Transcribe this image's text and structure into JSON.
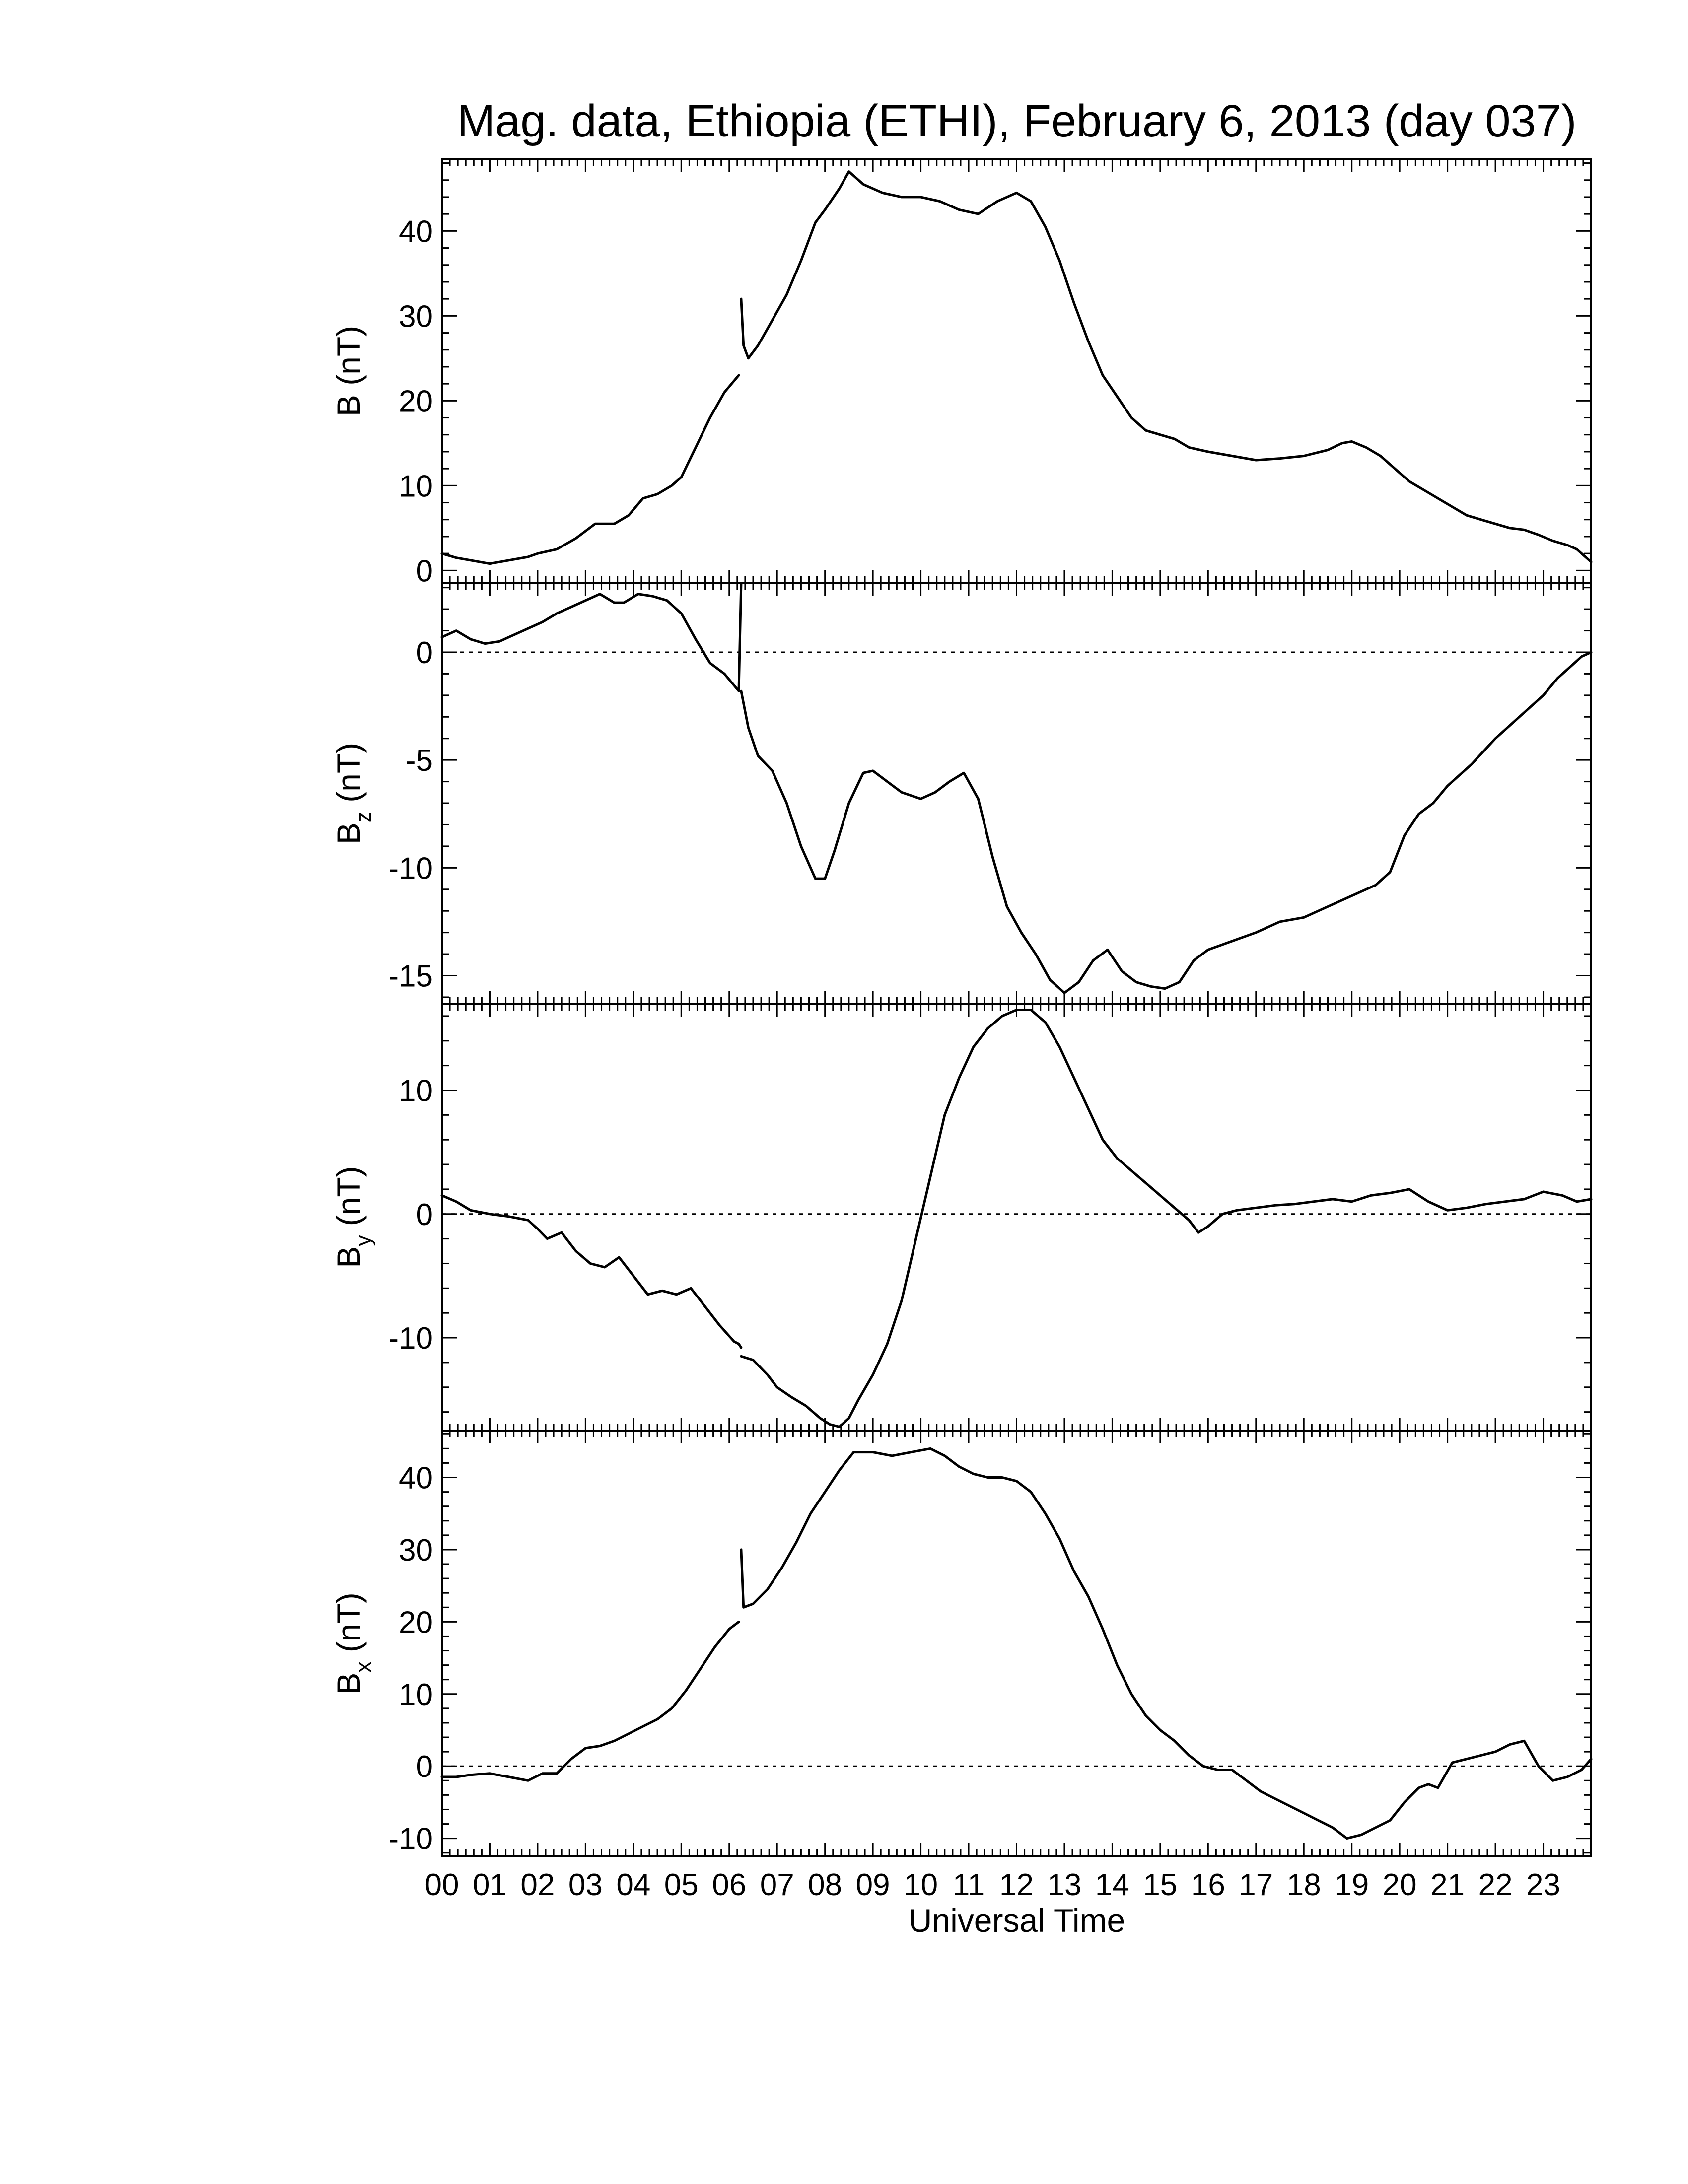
{
  "chart_data": {
    "type": "line",
    "title": "Mag. data, Ethiopia (ETHI), February 6, 2013 (day 037)",
    "xlabel": "Universal Time",
    "xlim": [
      0,
      24
    ],
    "x_tick_labels": [
      "00",
      "01",
      "02",
      "03",
      "04",
      "05",
      "06",
      "07",
      "08",
      "09",
      "10",
      "11",
      "12",
      "13",
      "14",
      "15",
      "16",
      "17",
      "18",
      "19",
      "20",
      "21",
      "22",
      "23"
    ],
    "panels": [
      {
        "id": "B",
        "ylabel_main": "B",
        "ylabel_sub": "",
        "ylabel_unit": "(nT)",
        "ylim": [
          -1.5,
          48.5
        ],
        "yticks": [
          0,
          10,
          20,
          30,
          40
        ],
        "ytick_labels": [
          "0",
          "10",
          "20",
          "30",
          "40"
        ],
        "zero_line": false,
        "series": [
          {
            "x": [
              0,
              0.3,
              0.6,
              1.0,
              1.4,
              1.8,
              2.0,
              2.4,
              2.8,
              3.2,
              3.6,
              3.9,
              4.2,
              4.5,
              4.8,
              5.0,
              5.3,
              5.6,
              5.9,
              6.2
            ],
            "y": [
              2.0,
              1.5,
              1.2,
              0.8,
              1.2,
              1.6,
              2.0,
              2.5,
              3.8,
              5.5,
              5.5,
              6.5,
              8.5,
              9.0,
              10.0,
              11.0,
              14.5,
              18.0,
              21.0,
              23.0
            ]
          },
          {
            "x": [
              6.25,
              6.3,
              6.4,
              6.6,
              6.9,
              7.2,
              7.5,
              7.8,
              8.0,
              8.3,
              8.5,
              8.8,
              9.2,
              9.6,
              10.0,
              10.4,
              10.8,
              11.2,
              11.6,
              12.0,
              12.3,
              12.6,
              12.9,
              13.2,
              13.5,
              13.8,
              14.1,
              14.4,
              14.7,
              15.0,
              15.3,
              15.6,
              16.0,
              16.5,
              17.0,
              17.5,
              18.0,
              18.5,
              18.8,
              19.0,
              19.3,
              19.6,
              19.9,
              20.2,
              20.5,
              20.8,
              21.1,
              21.4,
              21.7,
              22.0,
              22.3,
              22.6,
              22.9,
              23.2,
              23.5,
              23.7,
              23.9,
              24.0
            ],
            "y": [
              32.0,
              26.5,
              25.0,
              26.5,
              29.5,
              32.5,
              36.5,
              41.0,
              42.5,
              45.0,
              47.0,
              45.5,
              44.5,
              44.0,
              44.0,
              43.5,
              42.5,
              42.0,
              43.5,
              44.5,
              43.5,
              40.5,
              36.5,
              31.5,
              27.0,
              23.0,
              20.5,
              18.0,
              16.5,
              16.0,
              15.5,
              14.5,
              14.0,
              13.5,
              13.0,
              13.2,
              13.5,
              14.2,
              15.0,
              15.2,
              14.5,
              13.5,
              12.0,
              10.5,
              9.5,
              8.5,
              7.5,
              6.5,
              6.0,
              5.5,
              5.0,
              4.8,
              4.2,
              3.5,
              3.0,
              2.5,
              1.5,
              1.0
            ]
          }
        ]
      },
      {
        "id": "Bz",
        "ylabel_main": "B",
        "ylabel_sub": "z",
        "ylabel_unit": "(nT)",
        "ylim": [
          -16.3,
          3.2
        ],
        "yticks": [
          0,
          -5,
          -10,
          -15
        ],
        "ytick_labels": [
          "0",
          "-5",
          "-10",
          "-15"
        ],
        "zero_line": true,
        "series": [
          {
            "x": [
              0,
              0.3,
              0.6,
              0.9,
              1.2,
              1.5,
              1.8,
              2.1,
              2.4,
              2.7,
              3.0,
              3.3,
              3.6,
              3.8,
              4.1,
              4.4,
              4.7,
              5.0,
              5.3,
              5.6,
              5.9,
              6.2,
              6.25
            ],
            "y": [
              0.7,
              1.0,
              0.6,
              0.4,
              0.5,
              0.8,
              1.1,
              1.4,
              1.8,
              2.1,
              2.4,
              2.7,
              2.3,
              2.3,
              2.7,
              2.6,
              2.4,
              1.8,
              0.6,
              -0.5,
              -1.0,
              -1.8,
              3.2
            ]
          },
          {
            "x": [
              6.25,
              6.4,
              6.6,
              6.9,
              7.2,
              7.5,
              7.8,
              8.0,
              8.2,
              8.5,
              8.8,
              9.0,
              9.3,
              9.6,
              10.0,
              10.3,
              10.6,
              10.9,
              11.2,
              11.5,
              11.8,
              12.1,
              12.4,
              12.7,
              13.0,
              13.3,
              13.6,
              13.9,
              14.2,
              14.5,
              14.8,
              15.1,
              15.4,
              15.7,
              16.0,
              16.5,
              17.0,
              17.5,
              18.0,
              18.5,
              19.0,
              19.5,
              19.8,
              20.1,
              20.4,
              20.7,
              21.0,
              21.5,
              22.0,
              22.5,
              23.0,
              23.3,
              23.6,
              23.8,
              24.0
            ],
            "y": [
              -1.8,
              -3.5,
              -4.8,
              -5.5,
              -7.0,
              -9.0,
              -10.5,
              -10.5,
              -9.2,
              -7.0,
              -5.6,
              -5.5,
              -6.0,
              -6.5,
              -6.8,
              -6.5,
              -6.0,
              -5.6,
              -6.8,
              -9.5,
              -11.8,
              -13.0,
              -14.0,
              -15.2,
              -15.8,
              -15.3,
              -14.3,
              -13.8,
              -14.8,
              -15.3,
              -15.5,
              -15.6,
              -15.3,
              -14.3,
              -13.8,
              -13.4,
              -13.0,
              -12.5,
              -12.3,
              -11.8,
              -11.3,
              -10.8,
              -10.2,
              -8.5,
              -7.5,
              -7.0,
              -6.2,
              -5.2,
              -4.0,
              -3.0,
              -2.0,
              -1.2,
              -0.6,
              -0.2,
              0.0
            ]
          }
        ]
      },
      {
        "id": "By",
        "ylabel_main": "B",
        "ylabel_sub": "y",
        "ylabel_unit": "(nT)",
        "ylim": [
          -17.5,
          17.0
        ],
        "yticks": [
          10,
          0,
          -10
        ],
        "ytick_labels": [
          "10",
          "0",
          "-10"
        ],
        "zero_line": true,
        "series": [
          {
            "x": [
              0,
              0.3,
              0.6,
              1.0,
              1.4,
              1.8,
              2.0,
              2.2,
              2.5,
              2.8,
              3.1,
              3.4,
              3.7,
              4.0,
              4.3,
              4.6,
              4.9,
              5.2,
              5.5,
              5.8,
              6.1,
              6.2,
              6.25
            ],
            "y": [
              1.5,
              1.0,
              0.3,
              0.0,
              -0.2,
              -0.5,
              -1.2,
              -2.0,
              -1.5,
              -3.0,
              -4.0,
              -4.3,
              -3.5,
              -5.0,
              -6.5,
              -6.2,
              -6.5,
              -6.0,
              -7.5,
              -9.0,
              -10.3,
              -10.5,
              -10.8
            ]
          },
          {
            "x": [
              6.25,
              6.5,
              6.8,
              7.0,
              7.3,
              7.6,
              7.9,
              8.1,
              8.3,
              8.5,
              8.7,
              9.0,
              9.3,
              9.6,
              9.9,
              10.2,
              10.5,
              10.8,
              11.1,
              11.4,
              11.7,
              12.0,
              12.3,
              12.6,
              12.9,
              13.2,
              13.5,
              13.8,
              14.1,
              14.4,
              14.7,
              15.0,
              15.3,
              15.6,
              15.8,
              16.0,
              16.3,
              16.6,
              17.0,
              17.4,
              17.8,
              18.2,
              18.6,
              19.0,
              19.4,
              19.8,
              20.2,
              20.6,
              21.0,
              21.4,
              21.8,
              22.2,
              22.6,
              23.0,
              23.4,
              23.7,
              24.0
            ],
            "y": [
              -11.5,
              -11.8,
              -13.0,
              -14.0,
              -14.8,
              -15.5,
              -16.5,
              -17.0,
              -17.2,
              -16.5,
              -15.0,
              -13.0,
              -10.5,
              -7.0,
              -2.0,
              3.0,
              8.0,
              11.0,
              13.5,
              15.0,
              16.0,
              16.5,
              16.5,
              15.5,
              13.5,
              11.0,
              8.5,
              6.0,
              4.5,
              3.5,
              2.5,
              1.5,
              0.5,
              -0.5,
              -1.5,
              -1.0,
              0.0,
              0.3,
              0.5,
              0.7,
              0.8,
              1.0,
              1.2,
              1.0,
              1.5,
              1.7,
              2.0,
              1.0,
              0.3,
              0.5,
              0.8,
              1.0,
              1.2,
              1.8,
              1.5,
              1.0,
              1.2
            ]
          }
        ]
      },
      {
        "id": "Bx",
        "ylabel_main": "B",
        "ylabel_sub": "x",
        "ylabel_unit": "(nT)",
        "ylim": [
          -12.5,
          46.5
        ],
        "yticks": [
          40,
          30,
          20,
          10,
          0,
          -10
        ],
        "ytick_labels": [
          "40",
          "30",
          "20",
          "10",
          "0",
          "-10"
        ],
        "zero_line": true,
        "series": [
          {
            "x": [
              0,
              0.3,
              0.6,
              1.0,
              1.4,
              1.8,
              2.1,
              2.4,
              2.7,
              3.0,
              3.3,
              3.6,
              3.9,
              4.2,
              4.5,
              4.8,
              5.1,
              5.4,
              5.7,
              6.0,
              6.2
            ],
            "y": [
              -1.5,
              -1.5,
              -1.2,
              -1.0,
              -1.5,
              -2.0,
              -1.0,
              -1.0,
              1.0,
              2.5,
              2.8,
              3.5,
              4.5,
              5.5,
              6.5,
              8.0,
              10.5,
              13.5,
              16.5,
              19.0,
              20.0
            ]
          },
          {
            "x": [
              6.25,
              6.3,
              6.5,
              6.8,
              7.1,
              7.4,
              7.7,
              8.0,
              8.3,
              8.6,
              9.0,
              9.4,
              9.8,
              10.2,
              10.5,
              10.8,
              11.1,
              11.4,
              11.7,
              12.0,
              12.3,
              12.6,
              12.9,
              13.2,
              13.5,
              13.8,
              14.1,
              14.4,
              14.7,
              15.0,
              15.3,
              15.6,
              15.9,
              16.2,
              16.5,
              16.8,
              17.1,
              17.4,
              17.7,
              18.0,
              18.3,
              18.6,
              18.9,
              19.2,
              19.5,
              19.8,
              20.1,
              20.4,
              20.6,
              20.8,
              21.1,
              21.4,
              21.7,
              22.0,
              22.3,
              22.6,
              22.9,
              23.2,
              23.5,
              23.8,
              24.0
            ],
            "y": [
              30.0,
              22.0,
              22.5,
              24.5,
              27.5,
              31.0,
              35.0,
              38.0,
              41.0,
              43.5,
              43.5,
              43.0,
              43.5,
              44.0,
              43.0,
              41.5,
              40.5,
              40.0,
              40.0,
              39.5,
              38.0,
              35.0,
              31.5,
              27.0,
              23.5,
              19.0,
              14.0,
              10.0,
              7.0,
              5.0,
              3.5,
              1.5,
              0.0,
              -0.5,
              -0.5,
              -2.0,
              -3.5,
              -4.5,
              -5.5,
              -6.5,
              -7.5,
              -8.5,
              -10.0,
              -9.5,
              -8.5,
              -7.5,
              -5.0,
              -3.0,
              -2.5,
              -3.0,
              0.5,
              1.0,
              1.5,
              2.0,
              3.0,
              3.5,
              0.0,
              -2.0,
              -1.5,
              -0.5,
              1.0
            ]
          }
        ]
      }
    ]
  }
}
